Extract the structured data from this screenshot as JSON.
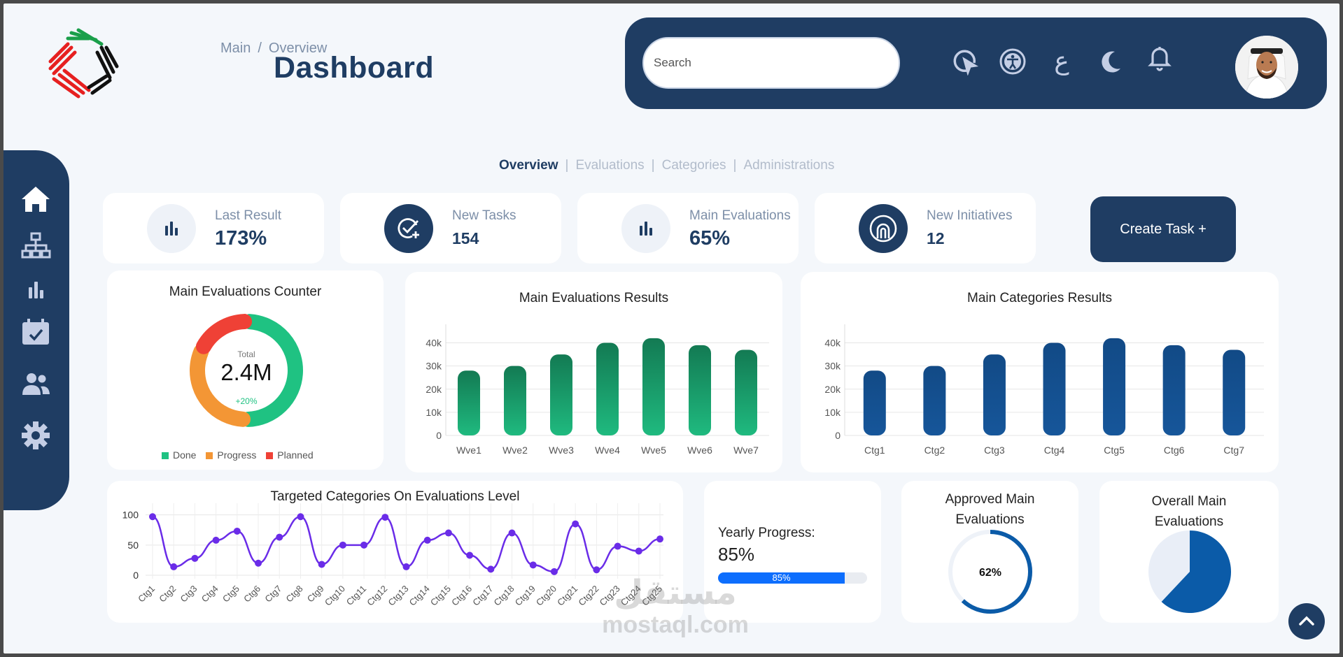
{
  "breadcrumb": {
    "root": "Main",
    "separator": "/",
    "current": "Overview"
  },
  "page_title": "Dashboard",
  "search": {
    "placeholder": "Search"
  },
  "topbar_icons": [
    "cursor-icon",
    "accessibility-icon",
    "arabic-language-toggle",
    "moon-icon",
    "bell-icon"
  ],
  "language_toggle_label": "ع",
  "sidebar_icons": [
    "home-icon",
    "sitemap-icon",
    "bar-chart-icon",
    "calendar-icon",
    "users-icon",
    "gear-icon"
  ],
  "tabs": [
    {
      "label": "Overview",
      "active": true
    },
    {
      "label": "Evaluations",
      "active": false
    },
    {
      "label": "Categories",
      "active": false
    },
    {
      "label": "Administrations",
      "active": false
    }
  ],
  "stats": [
    {
      "label": "Last Result",
      "value": "173%",
      "icon": "bar-chart-icon"
    },
    {
      "label": "New Tasks",
      "value": "154",
      "icon": "task-add-icon"
    },
    {
      "label": "Main Evaluations",
      "value": "65%",
      "icon": "bar-chart-icon"
    },
    {
      "label": "New Initiatives",
      "value": "12",
      "icon": "initiative-icon"
    }
  ],
  "create_task_label": "Create Task +",
  "counter": {
    "title": "Main Evaluations Counter",
    "center_label": "Total",
    "center_value": "2.4M",
    "change": "+20%",
    "legend": [
      {
        "label": "Done",
        "color": "#1fc282"
      },
      {
        "label": "Progress",
        "color": "#f39635"
      },
      {
        "label": "Planned",
        "color": "#ef4136"
      }
    ],
    "shares": {
      "Done": 0.5,
      "Progress": 0.32,
      "Planned": 0.18
    }
  },
  "colors": {
    "primary": "#1f3d63",
    "green": "#1aa774",
    "blue": "#134e8c",
    "purple": "#6a2ce8",
    "progress": "#0d6efd",
    "gauge": "#0b5ba8"
  },
  "chart_data": [
    {
      "type": "bar",
      "title": "Main Evaluations Results",
      "categories": [
        "Wve1",
        "Wve2",
        "Wve3",
        "Wve4",
        "Wve5",
        "Wve6",
        "Wve7"
      ],
      "values": [
        28000,
        30000,
        35000,
        40000,
        42000,
        39000,
        37000
      ],
      "yticks": [
        "0",
        "10k",
        "20k",
        "30k",
        "40k"
      ],
      "ylim": [
        0,
        45000
      ],
      "grid": true
    },
    {
      "type": "bar",
      "title": "Main Categories Results",
      "categories": [
        "Ctg1",
        "Ctg2",
        "Ctg3",
        "Ctg4",
        "Ctg5",
        "Ctg6",
        "Ctg7"
      ],
      "values": [
        28000,
        30000,
        35000,
        40000,
        42000,
        39000,
        37000
      ],
      "yticks": [
        "0",
        "10k",
        "20k",
        "30k",
        "40k"
      ],
      "ylim": [
        0,
        45000
      ],
      "grid": true
    },
    {
      "type": "line",
      "title": "Targeted Categories On Evaluations Level",
      "categories": [
        "Ctg1",
        "Ctg2",
        "Ctg3",
        "Ctg4",
        "Ctg5",
        "Ctg6",
        "Ctg7",
        "Ctg8",
        "Ctg9",
        "Ctg10",
        "Ctg11",
        "Ctg12",
        "Ctg13",
        "Ctg14",
        "Ctg15",
        "Ctg16",
        "Ctg17",
        "Ctg18",
        "Ctg19",
        "Ctg20",
        "Ctg21",
        "Ctg22",
        "Ctg23",
        "Ctg24",
        "Ctg25"
      ],
      "values": [
        97,
        14,
        28,
        58,
        73,
        20,
        63,
        97,
        18,
        50,
        50,
        96,
        14,
        58,
        70,
        33,
        10,
        70,
        17,
        6,
        85,
        9,
        48,
        40,
        60
      ],
      "yticks": [
        "0",
        "50",
        "100"
      ],
      "ylim": [
        0,
        110
      ],
      "grid": true
    }
  ],
  "yearly_progress": {
    "title": "Yearly Progress:",
    "value": "85%",
    "bar_label": "85%",
    "fraction": 0.85
  },
  "approved": {
    "title_line1": "Approved Main",
    "title_line2": "Evaluations",
    "value": "62%",
    "fraction": 0.62
  },
  "overall": {
    "title_line1": "Overall Main",
    "title_line2": "Evaluations",
    "fraction": 0.62
  },
  "watermark": {
    "arabic": "مستقل",
    "latin": "mostaql.com"
  }
}
